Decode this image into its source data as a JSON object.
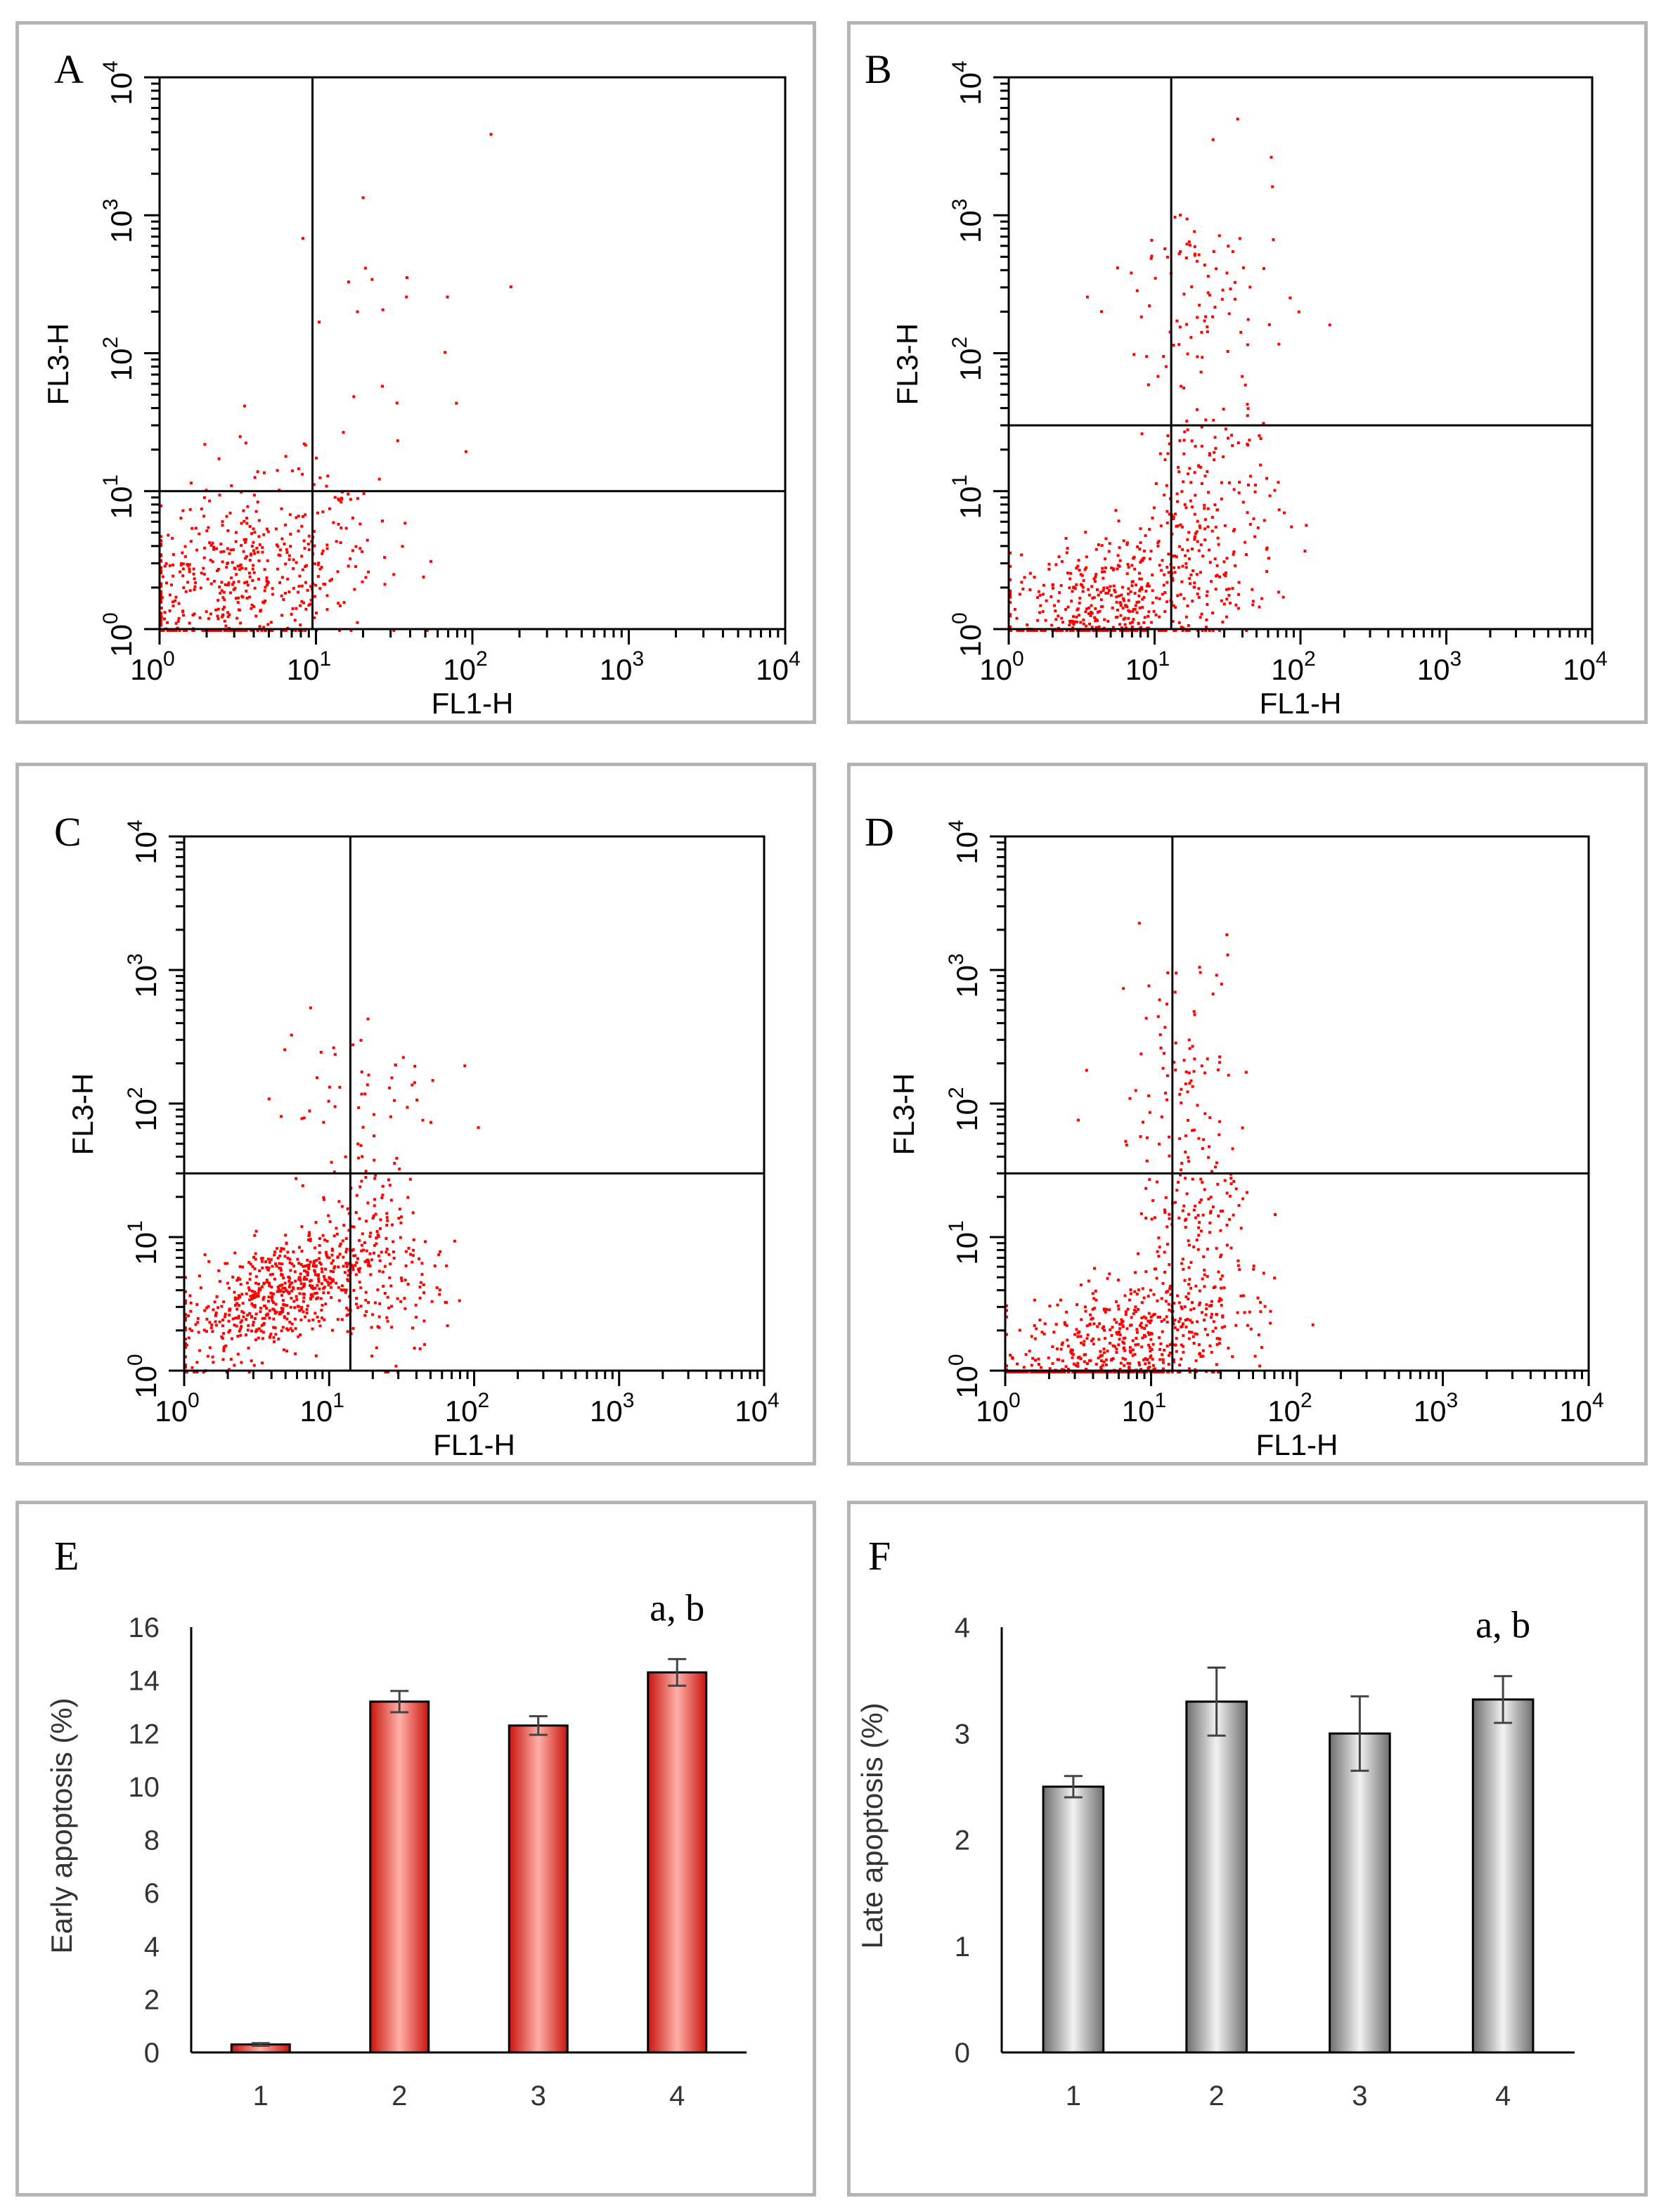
{
  "panels": {
    "A": {
      "letter": "A",
      "x_label": "FL1-H",
      "y_label": "FL3-H"
    },
    "B": {
      "letter": "B",
      "x_label": "FL1-H",
      "y_label": "FL3-H"
    },
    "C": {
      "letter": "C",
      "x_label": "FL1-H",
      "y_label": "FL3-H"
    },
    "D": {
      "letter": "D",
      "x_label": "FL1-H",
      "y_label": "FL3-H"
    },
    "E": {
      "letter": "E"
    },
    "F": {
      "letter": "F"
    }
  },
  "log_ticks": {
    "base": "10",
    "exponents": [
      "0",
      "1",
      "2",
      "3",
      "4"
    ]
  },
  "colors": {
    "dots": "#ff0000",
    "bar_red": "#e8231c",
    "bar_gray": "#8a8a8a",
    "border": "#b4b4b4"
  },
  "chart_data": [
    {
      "panel": "A",
      "type": "scatter",
      "title": "",
      "xlabel": "FL1-H",
      "ylabel": "FL3-H",
      "xscale": "log",
      "yscale": "log",
      "xlim": [
        1,
        10000
      ],
      "ylim": [
        1,
        10000
      ],
      "quadrant_gate": {
        "x": 9.5,
        "y": 10
      },
      "populations": [
        {
          "center": [
            3.0,
            2.0
          ],
          "spread": [
            0.45,
            0.35
          ],
          "count": 520,
          "corr": 0.3
        },
        {
          "center": [
            7.0,
            5.0
          ],
          "spread": [
            0.35,
            0.35
          ],
          "count": 40,
          "corr": 0.3
        },
        {
          "center": [
            20,
            150
          ],
          "spread": [
            0.4,
            0.7
          ],
          "count": 22,
          "corr": 0.0
        },
        {
          "center": [
            3,
            20
          ],
          "spread": [
            0.3,
            0.2
          ],
          "count": 4,
          "corr": 0.0
        }
      ]
    },
    {
      "panel": "B",
      "type": "scatter",
      "title": "",
      "xlabel": "FL1-H",
      "ylabel": "FL3-H",
      "xscale": "log",
      "yscale": "log",
      "xlim": [
        1,
        10000
      ],
      "ylim": [
        1,
        10000
      ],
      "quadrant_gate": {
        "x": 13,
        "y": 30
      },
      "populations": [
        {
          "center": [
            5.0,
            1.5
          ],
          "spread": [
            0.45,
            0.3
          ],
          "count": 520,
          "corr": 0.45
        },
        {
          "center": [
            22,
            8
          ],
          "spread": [
            0.25,
            0.45
          ],
          "count": 170,
          "corr": 0.0
        },
        {
          "center": [
            20,
            250
          ],
          "spread": [
            0.3,
            0.45
          ],
          "count": 90,
          "corr": 0.0
        }
      ]
    },
    {
      "panel": "C",
      "type": "scatter",
      "title": "",
      "xlabel": "FL1-H",
      "ylabel": "FL3-H",
      "xscale": "log",
      "yscale": "log",
      "xlim": [
        1,
        10000
      ],
      "ylim": [
        1,
        10000
      ],
      "quadrant_gate": {
        "x": 14,
        "y": 30
      },
      "populations": [
        {
          "center": [
            4.5,
            4.0
          ],
          "spread": [
            0.35,
            0.25
          ],
          "count": 620,
          "corr": 0.6
        },
        {
          "center": [
            22,
            6
          ],
          "spread": [
            0.22,
            0.4
          ],
          "count": 150,
          "corr": 0.0
        },
        {
          "center": [
            15,
            100
          ],
          "spread": [
            0.3,
            0.4
          ],
          "count": 55,
          "corr": 0.0
        }
      ]
    },
    {
      "panel": "D",
      "type": "scatter",
      "title": "",
      "xlabel": "FL1-H",
      "ylabel": "FL3-H",
      "xscale": "log",
      "yscale": "log",
      "xlim": [
        1,
        10000
      ],
      "ylim": [
        1,
        10000
      ],
      "quadrant_gate": {
        "x": 14,
        "y": 30
      },
      "populations": [
        {
          "center": [
            6.0,
            1.5
          ],
          "spread": [
            0.4,
            0.3
          ],
          "count": 600,
          "corr": 0.45
        },
        {
          "center": [
            22,
            10
          ],
          "spread": [
            0.22,
            0.45
          ],
          "count": 150,
          "corr": 0.0
        },
        {
          "center": [
            15,
            250
          ],
          "spread": [
            0.25,
            0.45
          ],
          "count": 75,
          "corr": 0.0
        }
      ]
    },
    {
      "panel": "E",
      "type": "bar",
      "title": "",
      "xlabel": "",
      "ylabel": "Early apoptosis (%)",
      "categories": [
        "1",
        "2",
        "3",
        "4"
      ],
      "values": [
        0.3,
        13.2,
        12.3,
        14.3
      ],
      "errors": [
        0.05,
        0.4,
        0.35,
        0.5
      ],
      "ylim": [
        0,
        16
      ],
      "yticks": [
        "0",
        "2",
        "4",
        "6",
        "8",
        "10",
        "12",
        "14",
        "16"
      ],
      "annotation": {
        "category": "4",
        "text": "a, b"
      }
    },
    {
      "panel": "F",
      "type": "bar",
      "title": "",
      "xlabel": "",
      "ylabel": "Late apoptosis (%)",
      "categories": [
        "1",
        "2",
        "3",
        "4"
      ],
      "values": [
        2.5,
        3.3,
        3.0,
        3.32
      ],
      "errors": [
        0.1,
        0.32,
        0.35,
        0.22
      ],
      "ylim": [
        0,
        4
      ],
      "yticks": [
        "0",
        "1",
        "2",
        "3",
        "4"
      ],
      "annotation": {
        "category": "4",
        "text": "a, b"
      }
    }
  ]
}
